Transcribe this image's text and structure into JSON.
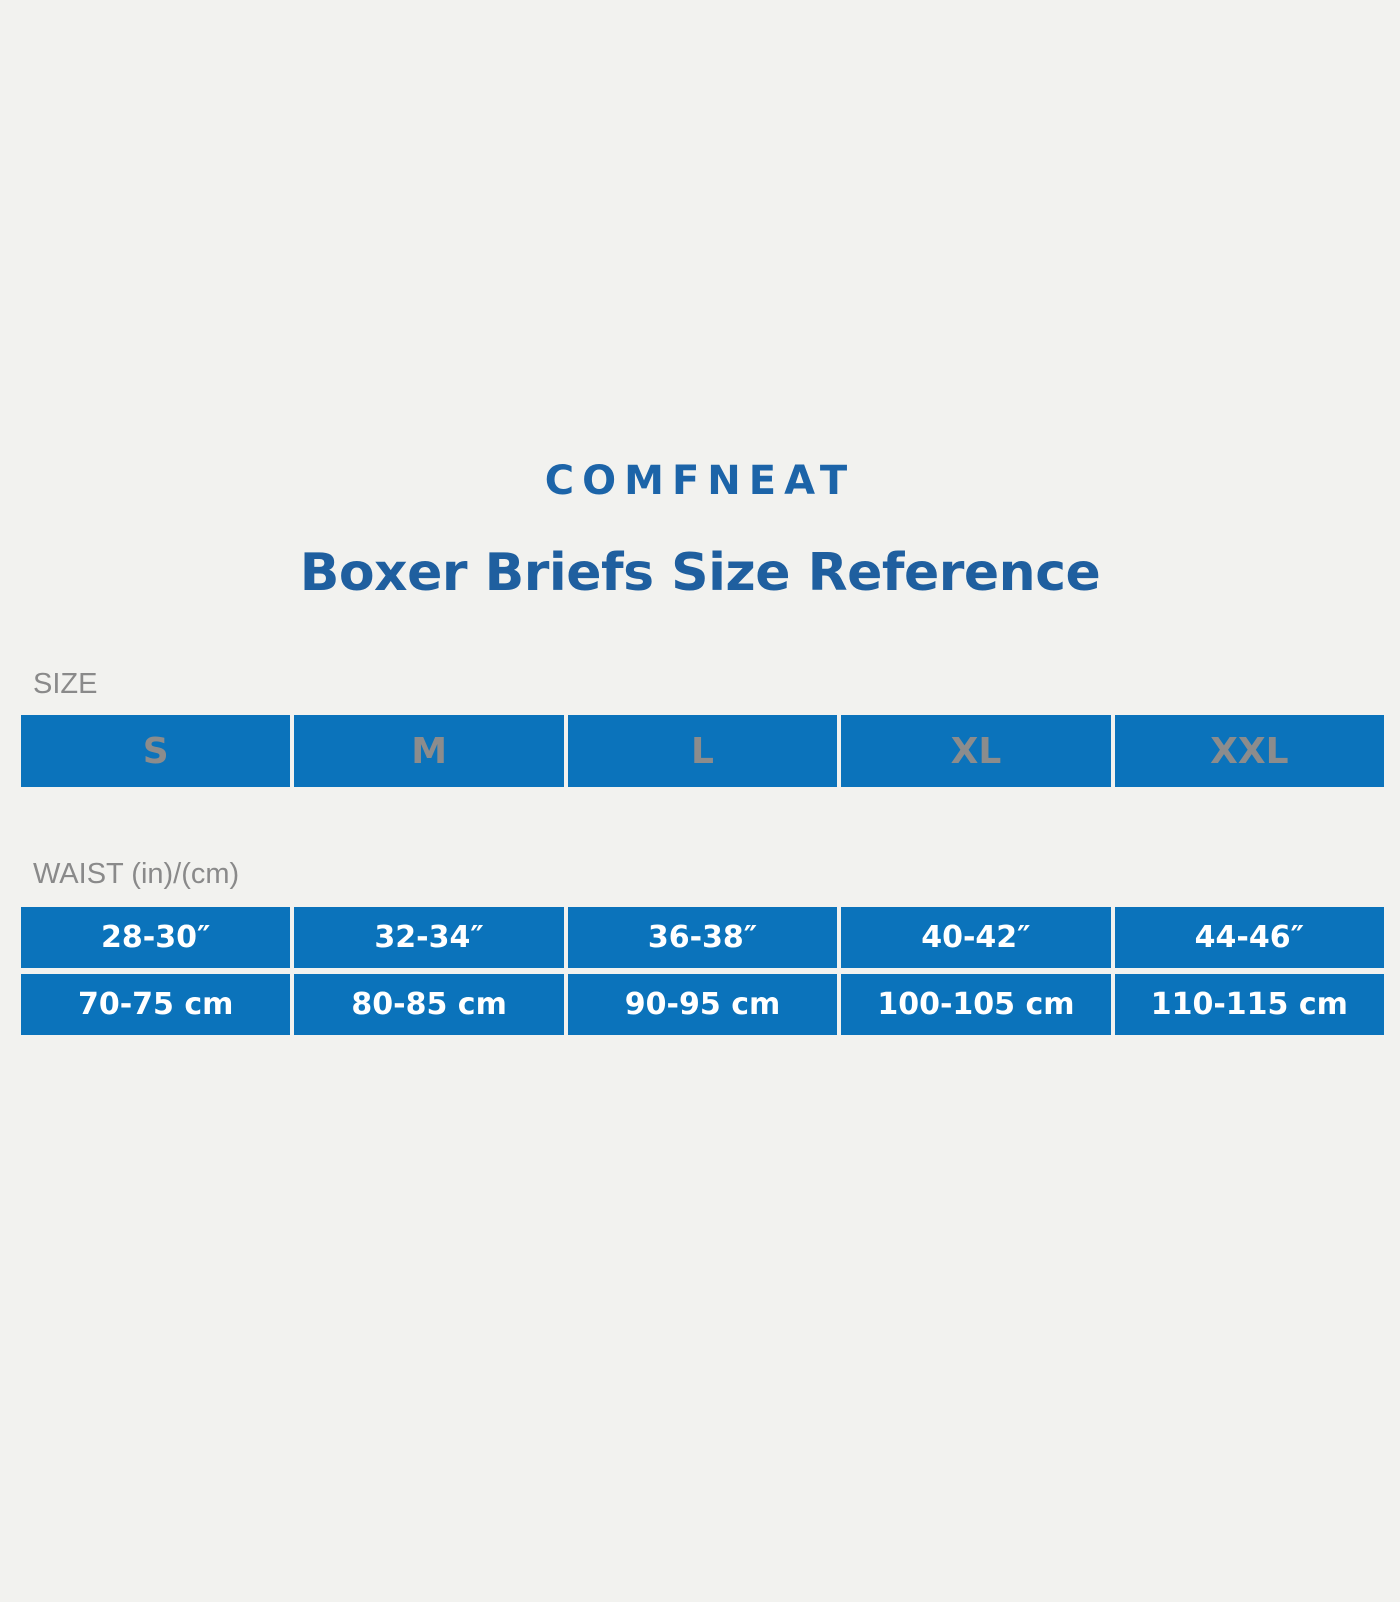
{
  "brand": "COMFNEAT",
  "title": "Boxer Briefs Size Reference",
  "size_label": "SIZE",
  "sizes": [
    "S",
    "M",
    "L",
    "XL",
    "XXL"
  ],
  "waist_label": "WAIST (in)/(cm)",
  "waist_in": [
    "28-30″",
    "32-34″",
    "36-38″",
    "40-42″",
    "44-46″"
  ],
  "waist_cm": [
    "70-75 cm",
    "80-85 cm",
    "90-95 cm",
    "100-105 cm",
    "110-115 cm"
  ],
  "colors": {
    "cell_blue": "#0b73bb",
    "title_blue": "#1f5f9f",
    "label_grey": "#8a8a8a"
  }
}
